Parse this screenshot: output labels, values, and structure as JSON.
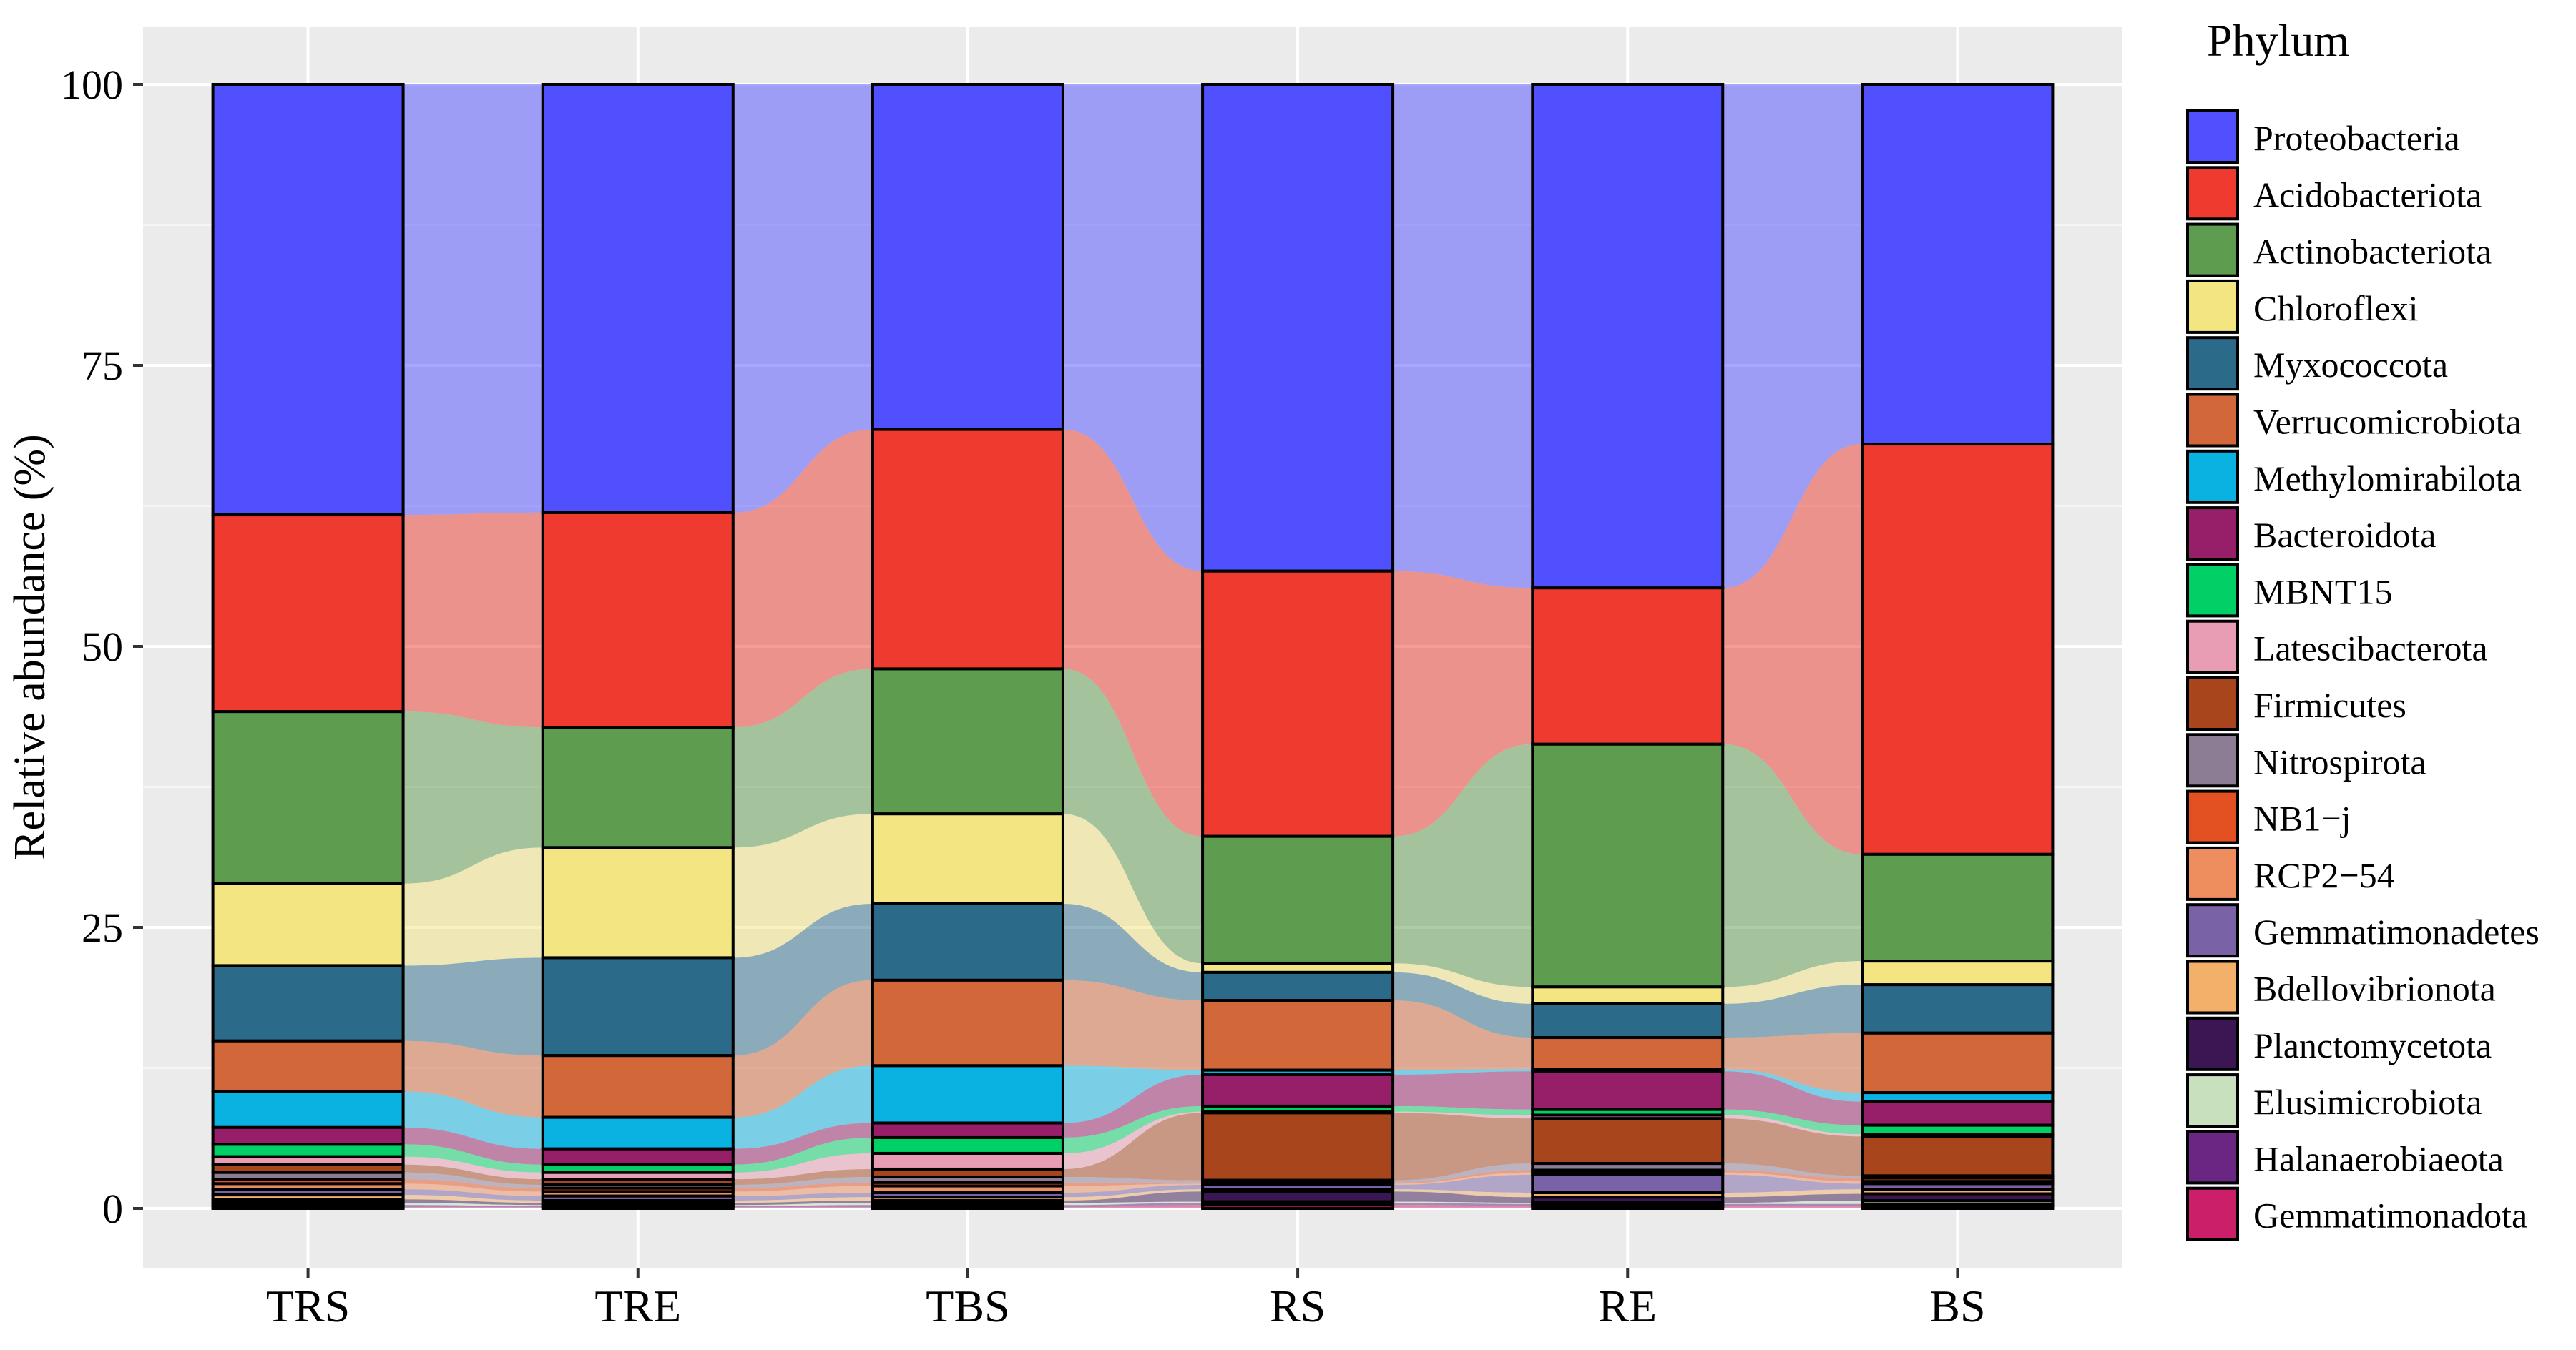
{
  "chart_data": {
    "type": "bar",
    "stacked": true,
    "alluvial_bands": true,
    "ylabel": "Relative abundance (%)",
    "xlabel": "",
    "ylim": [
      0,
      100
    ],
    "yticks": [
      "0",
      "25",
      "50",
      "75",
      "100"
    ],
    "grid": true,
    "legend_title": "Phylum",
    "legend_position": "right",
    "categories": [
      "TRS",
      "TRE",
      "TBS",
      "RS",
      "RE",
      "BS"
    ],
    "series": [
      {
        "name": "Proteobacteria",
        "color": "#5050FF",
        "values": [
          38.3,
          38.1,
          30.7,
          43.3,
          44.8,
          32.0
        ]
      },
      {
        "name": "Acidobacteriota",
        "color": "#EE3A2F",
        "values": [
          17.5,
          19.1,
          21.3,
          23.6,
          13.9,
          36.5
        ]
      },
      {
        "name": "Actinobacteriota",
        "color": "#5E9C50",
        "values": [
          15.3,
          10.7,
          12.9,
          11.3,
          21.6,
          9.5
        ]
      },
      {
        "name": "Chloroflexi",
        "color": "#F3E682",
        "values": [
          7.3,
          9.8,
          8.0,
          0.8,
          1.5,
          2.1
        ]
      },
      {
        "name": "Myxococcota",
        "color": "#2C6A8A",
        "values": [
          6.7,
          8.7,
          6.8,
          2.5,
          3.0,
          4.3
        ]
      },
      {
        "name": "Verrucomicrobiota",
        "color": "#D2683A",
        "values": [
          4.5,
          5.5,
          7.6,
          6.2,
          2.8,
          5.3
        ]
      },
      {
        "name": "Methylomirabilota",
        "color": "#0AB2E2",
        "values": [
          3.2,
          2.8,
          5.1,
          0.4,
          0.2,
          0.8
        ]
      },
      {
        "name": "Bacteroidota",
        "color": "#971E68",
        "values": [
          1.5,
          1.4,
          1.3,
          2.8,
          3.4,
          2.1
        ]
      },
      {
        "name": "MBNT15",
        "color": "#00D065",
        "values": [
          1.1,
          0.7,
          1.4,
          0.5,
          0.5,
          0.8
        ]
      },
      {
        "name": "Latescibacterota",
        "color": "#E89DB4",
        "values": [
          0.7,
          0.6,
          1.4,
          0.1,
          0.3,
          0.2
        ]
      },
      {
        "name": "Firmicutes",
        "color": "#A8451D",
        "values": [
          0.7,
          0.5,
          0.7,
          6.0,
          4.0,
          3.5
        ]
      },
      {
        "name": "Nitrospirota",
        "color": "#8C7C94",
        "values": [
          0.6,
          0.3,
          0.5,
          0.2,
          0.6,
          0.2
        ]
      },
      {
        "name": "NB1−j",
        "color": "#E35022",
        "values": [
          0.4,
          0.3,
          0.3,
          0.1,
          0.2,
          0.3
        ]
      },
      {
        "name": "RCP2−54",
        "color": "#EE8D5D",
        "values": [
          0.5,
          0.4,
          0.6,
          0.1,
          0.2,
          0.2
        ]
      },
      {
        "name": "Gemmatimonadetes",
        "color": "#7A62A6",
        "values": [
          0.5,
          0.4,
          0.4,
          0.4,
          1.6,
          0.5
        ]
      },
      {
        "name": "Bdellovibrionota",
        "color": "#F3B06A",
        "values": [
          0.4,
          0.2,
          0.3,
          0.2,
          0.4,
          0.4
        ]
      },
      {
        "name": "Planctomycetota",
        "color": "#3A1752",
        "values": [
          0.3,
          0.2,
          0.2,
          0.9,
          0.5,
          0.6
        ]
      },
      {
        "name": "Elusimicrobiota",
        "color": "#C8E0BD",
        "values": [
          0.2,
          0.1,
          0.2,
          0.1,
          0.1,
          0.3
        ]
      },
      {
        "name": "Halanaerobiaeota",
        "color": "#6A2682",
        "values": [
          0.2,
          0.1,
          0.2,
          0.2,
          0.2,
          0.2
        ]
      },
      {
        "name": "Gemmatimonadota",
        "color": "#CC1F6A",
        "values": [
          0.1,
          0.1,
          0.1,
          0.3,
          0.2,
          0.2
        ]
      }
    ]
  }
}
